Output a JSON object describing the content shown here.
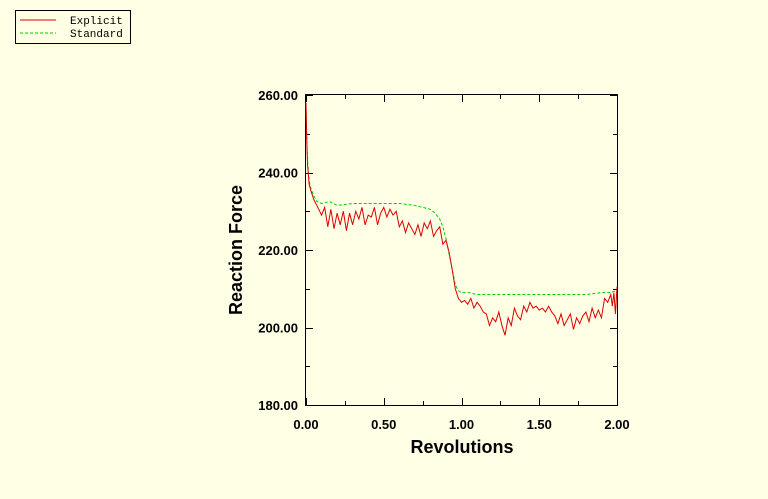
{
  "colors": {
    "background": "#ffffe6",
    "explicit": "#dd0000",
    "standard": "#00cc00",
    "axis": "#000000"
  },
  "chart_data": {
    "type": "line",
    "title": "",
    "xlabel": "Revolutions",
    "ylabel": "Reaction Force",
    "xlim": [
      0,
      2
    ],
    "ylim": [
      180,
      260
    ],
    "xticks": [
      "0.00",
      "0.50",
      "1.00",
      "1.50",
      "2.00"
    ],
    "yticks": [
      "180.00",
      "200.00",
      "220.00",
      "240.00",
      "260.00"
    ],
    "grid": false,
    "legend_position": "top-left",
    "series": [
      {
        "name": "Explicit",
        "line_style": "solid",
        "color": "#dd0000",
        "x": [
          0.0,
          0.005,
          0.01,
          0.02,
          0.03,
          0.05,
          0.07,
          0.1,
          0.12,
          0.14,
          0.16,
          0.18,
          0.2,
          0.22,
          0.24,
          0.26,
          0.28,
          0.3,
          0.32,
          0.34,
          0.36,
          0.38,
          0.4,
          0.42,
          0.44,
          0.46,
          0.48,
          0.5,
          0.52,
          0.54,
          0.56,
          0.58,
          0.6,
          0.62,
          0.64,
          0.66,
          0.68,
          0.7,
          0.72,
          0.74,
          0.76,
          0.78,
          0.8,
          0.82,
          0.84,
          0.86,
          0.88,
          0.9,
          0.92,
          0.94,
          0.96,
          0.98,
          1.0,
          1.02,
          1.04,
          1.06,
          1.08,
          1.1,
          1.12,
          1.14,
          1.16,
          1.18,
          1.2,
          1.22,
          1.24,
          1.26,
          1.28,
          1.3,
          1.32,
          1.34,
          1.36,
          1.38,
          1.4,
          1.42,
          1.44,
          1.46,
          1.48,
          1.5,
          1.52,
          1.54,
          1.56,
          1.58,
          1.6,
          1.62,
          1.64,
          1.66,
          1.68,
          1.7,
          1.72,
          1.74,
          1.76,
          1.78,
          1.8,
          1.82,
          1.84,
          1.86,
          1.88,
          1.9,
          1.92,
          1.94,
          1.96,
          1.97,
          1.98,
          1.99,
          2.0
        ],
        "y": [
          258.0,
          248.0,
          242.0,
          237.0,
          235.5,
          233.0,
          231.5,
          229.0,
          231.0,
          226.0,
          230.5,
          225.5,
          229.5,
          226.5,
          230.0,
          225.0,
          229.5,
          226.5,
          230.0,
          228.0,
          231.0,
          226.5,
          229.0,
          228.5,
          231.0,
          226.5,
          229.5,
          231.0,
          228.5,
          230.5,
          229.0,
          230.0,
          226.0,
          227.5,
          224.5,
          227.0,
          225.5,
          224.0,
          226.5,
          223.5,
          227.0,
          225.5,
          227.5,
          223.5,
          225.0,
          226.0,
          221.5,
          222.5,
          219.5,
          215.0,
          210.0,
          207.5,
          206.5,
          207.0,
          206.0,
          207.5,
          205.0,
          206.5,
          205.5,
          204.0,
          203.5,
          200.5,
          202.5,
          201.5,
          204.0,
          200.5,
          198.0,
          202.5,
          200.5,
          205.0,
          203.0,
          202.0,
          205.5,
          204.0,
          206.5,
          205.0,
          205.5,
          204.5,
          205.0,
          204.0,
          205.5,
          204.0,
          203.0,
          201.0,
          203.5,
          200.5,
          202.0,
          203.5,
          199.5,
          202.5,
          201.0,
          203.0,
          204.0,
          201.5,
          205.0,
          202.5,
          204.5,
          202.5,
          207.5,
          206.5,
          208.5,
          205.5,
          209.0,
          203.5,
          210.5
        ]
      },
      {
        "name": "Standard",
        "line_style": "dashed",
        "color": "#00cc00",
        "x": [
          0.0,
          0.005,
          0.01,
          0.02,
          0.03,
          0.05,
          0.07,
          0.1,
          0.15,
          0.2,
          0.3,
          0.4,
          0.5,
          0.6,
          0.7,
          0.75,
          0.8,
          0.83,
          0.86,
          0.88,
          0.9,
          0.92,
          0.94,
          0.96,
          0.98,
          1.0,
          1.05,
          1.1,
          1.2,
          1.3,
          1.4,
          1.5,
          1.6,
          1.7,
          1.8,
          1.9,
          1.95,
          2.0
        ],
        "y": [
          257.0,
          249.0,
          243.0,
          238.0,
          236.0,
          234.0,
          232.5,
          232.0,
          232.5,
          231.5,
          232.0,
          232.0,
          232.0,
          232.0,
          231.5,
          231.0,
          230.5,
          229.5,
          228.0,
          226.0,
          223.0,
          219.0,
          215.0,
          211.0,
          209.5,
          209.0,
          209.0,
          208.5,
          208.5,
          208.5,
          208.5,
          208.5,
          208.5,
          208.5,
          208.5,
          209.0,
          209.0,
          209.5
        ]
      }
    ]
  }
}
